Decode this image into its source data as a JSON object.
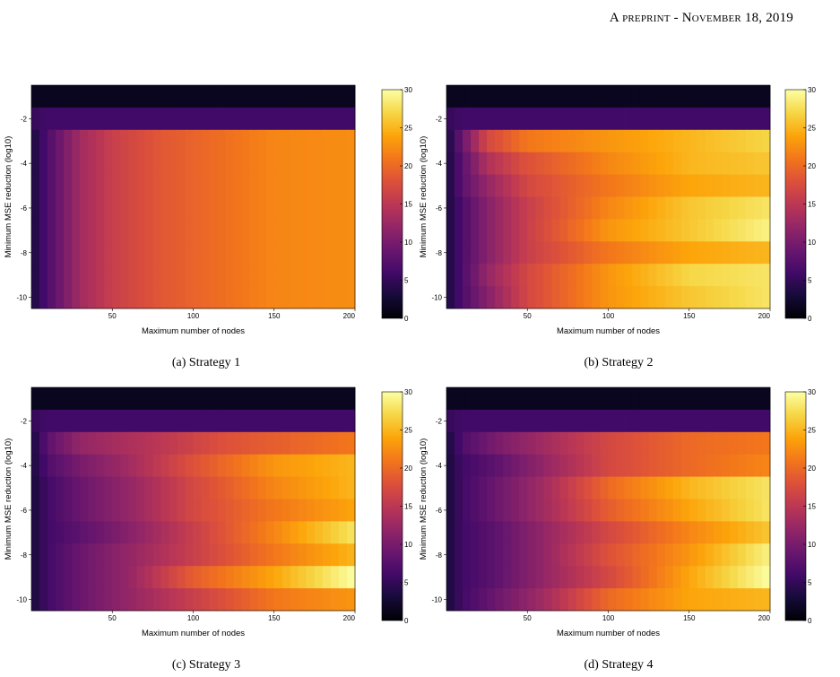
{
  "header": {
    "running_head": "A preprint - November 18, 2019"
  },
  "chart_data": [
    {
      "type": "heatmap",
      "caption": "(a) Strategy 1",
      "xlabel": "Maximum number of nodes",
      "ylabel": "Minimum MSE reduction (log10)",
      "xticks": [
        50,
        100,
        150,
        200
      ],
      "yticks": [
        -2,
        -4,
        -6,
        -8,
        -10
      ],
      "colorbar_ticks": [
        0,
        5,
        10,
        15,
        20,
        25,
        30
      ],
      "colorbar_range": [
        0,
        30
      ],
      "colormap": "inferno",
      "x": [
        1,
        200
      ],
      "y_rows": [
        -1,
        -2,
        -3,
        -4,
        -5,
        -6,
        -7,
        -8,
        -9,
        -10
      ],
      "profiles": [
        {
          "rows": [
            -1
          ],
          "points": [
            [
              0,
              1.5
            ],
            [
              200,
              1.5
            ]
          ]
        },
        {
          "rows": [
            -2
          ],
          "points": [
            [
              0,
              5
            ],
            [
              10,
              6
            ],
            [
              200,
              6
            ]
          ]
        },
        {
          "rows": [
            -3,
            -4,
            -5,
            -6,
            -7,
            -8,
            -9,
            -10
          ],
          "points": [
            [
              0,
              3
            ],
            [
              10,
              7
            ],
            [
              20,
              10
            ],
            [
              30,
              13
            ],
            [
              50,
              16
            ],
            [
              80,
              18.5
            ],
            [
              100,
              19.5
            ],
            [
              130,
              21
            ],
            [
              150,
              22
            ],
            [
              200,
              22.5
            ]
          ]
        }
      ]
    },
    {
      "type": "heatmap",
      "caption": "(b) Strategy 2",
      "xlabel": "Maximum number of nodes",
      "ylabel": "Minimum MSE reduction (log10)",
      "xticks": [
        50,
        100,
        150,
        200
      ],
      "yticks": [
        -2,
        -4,
        -6,
        -8,
        -10
      ],
      "colorbar_ticks": [
        0,
        5,
        10,
        15,
        20,
        25,
        30
      ],
      "colorbar_range": [
        0,
        30
      ],
      "colormap": "inferno",
      "x": [
        1,
        200
      ],
      "y_rows": [
        -1,
        -2,
        -3,
        -4,
        -5,
        -6,
        -7,
        -8,
        -9,
        -10
      ],
      "profiles": [
        {
          "rows": [
            -1
          ],
          "points": [
            [
              0,
              1.5
            ],
            [
              200,
              1.5
            ]
          ]
        },
        {
          "rows": [
            -2
          ],
          "points": [
            [
              0,
              5
            ],
            [
              10,
              6
            ],
            [
              200,
              6
            ]
          ]
        },
        {
          "rows": [
            -3
          ],
          "points": [
            [
              0,
              3
            ],
            [
              10,
              9
            ],
            [
              25,
              17
            ],
            [
              50,
              21
            ],
            [
              100,
              23
            ],
            [
              150,
              25
            ],
            [
              200,
              27
            ]
          ]
        },
        {
          "rows": [
            -4
          ],
          "points": [
            [
              0,
              3
            ],
            [
              10,
              8
            ],
            [
              25,
              14
            ],
            [
              50,
              18
            ],
            [
              100,
              22
            ],
            [
              150,
              25
            ],
            [
              200,
              26
            ]
          ]
        },
        {
          "rows": [
            -5
          ],
          "points": [
            [
              0,
              3
            ],
            [
              10,
              8
            ],
            [
              25,
              12
            ],
            [
              50,
              17
            ],
            [
              100,
              21
            ],
            [
              150,
              24
            ],
            [
              200,
              25
            ]
          ]
        },
        {
          "rows": [
            -6
          ],
          "points": [
            [
              0,
              3
            ],
            [
              10,
              7
            ],
            [
              25,
              11
            ],
            [
              50,
              16
            ],
            [
              100,
              22
            ],
            [
              150,
              26
            ],
            [
              200,
              28
            ]
          ]
        },
        {
          "rows": [
            -7
          ],
          "points": [
            [
              0,
              3
            ],
            [
              10,
              7
            ],
            [
              25,
              11
            ],
            [
              50,
              16
            ],
            [
              100,
              23
            ],
            [
              150,
              26
            ],
            [
              200,
              29
            ]
          ]
        },
        {
          "rows": [
            -8
          ],
          "points": [
            [
              0,
              3
            ],
            [
              10,
              7
            ],
            [
              25,
              11
            ],
            [
              50,
              16
            ],
            [
              100,
              21
            ],
            [
              150,
              24
            ],
            [
              200,
              25
            ]
          ]
        },
        {
          "rows": [
            -9
          ],
          "points": [
            [
              0,
              3
            ],
            [
              10,
              7
            ],
            [
              25,
              12
            ],
            [
              50,
              17
            ],
            [
              100,
              23
            ],
            [
              150,
              27
            ],
            [
              200,
              28
            ]
          ]
        },
        {
          "rows": [
            -10
          ],
          "points": [
            [
              0,
              3
            ],
            [
              10,
              7
            ],
            [
              25,
              11
            ],
            [
              50,
              17
            ],
            [
              100,
              23
            ],
            [
              150,
              26
            ],
            [
              200,
              28
            ]
          ]
        }
      ]
    },
    {
      "type": "heatmap",
      "caption": "(c) Strategy 3",
      "xlabel": "Maximum number of nodes",
      "ylabel": "Minimum MSE reduction (log10)",
      "xticks": [
        50,
        100,
        150,
        200
      ],
      "yticks": [
        -2,
        -4,
        -6,
        -8,
        -10
      ],
      "colorbar_ticks": [
        0,
        5,
        10,
        15,
        20,
        25,
        30
      ],
      "colorbar_range": [
        0,
        30
      ],
      "colormap": "inferno",
      "x": [
        1,
        200
      ],
      "y_rows": [
        -1,
        -2,
        -3,
        -4,
        -5,
        -6,
        -7,
        -8,
        -9,
        -10
      ],
      "profiles": [
        {
          "rows": [
            -1
          ],
          "points": [
            [
              0,
              1.5
            ],
            [
              200,
              1.5
            ]
          ]
        },
        {
          "rows": [
            -2
          ],
          "points": [
            [
              0,
              5
            ],
            [
              10,
              6
            ],
            [
              200,
              6
            ]
          ]
        },
        {
          "rows": [
            -3
          ],
          "points": [
            [
              0,
              3
            ],
            [
              10,
              8
            ],
            [
              30,
              12
            ],
            [
              80,
              15
            ],
            [
              120,
              18
            ],
            [
              200,
              21
            ]
          ]
        },
        {
          "rows": [
            -4
          ],
          "points": [
            [
              0,
              3
            ],
            [
              10,
              7
            ],
            [
              30,
              10
            ],
            [
              60,
              13
            ],
            [
              100,
              18
            ],
            [
              150,
              23
            ],
            [
              200,
              25
            ]
          ]
        },
        {
          "rows": [
            -5
          ],
          "points": [
            [
              0,
              3
            ],
            [
              10,
              6
            ],
            [
              30,
              9
            ],
            [
              60,
              12
            ],
            [
              100,
              17
            ],
            [
              150,
              22
            ],
            [
              200,
              25
            ]
          ]
        },
        {
          "rows": [
            -6
          ],
          "points": [
            [
              0,
              3
            ],
            [
              10,
              6
            ],
            [
              30,
              9
            ],
            [
              60,
              12
            ],
            [
              100,
              17
            ],
            [
              150,
              21
            ],
            [
              200,
              24
            ]
          ]
        },
        {
          "rows": [
            -7
          ],
          "points": [
            [
              0,
              3
            ],
            [
              10,
              6
            ],
            [
              30,
              8
            ],
            [
              60,
              11
            ],
            [
              100,
              16
            ],
            [
              150,
              22
            ],
            [
              200,
              28
            ]
          ]
        },
        {
          "rows": [
            -8
          ],
          "points": [
            [
              0,
              3
            ],
            [
              10,
              6
            ],
            [
              30,
              9
            ],
            [
              60,
              12
            ],
            [
              100,
              16
            ],
            [
              150,
              21
            ],
            [
              200,
              25
            ]
          ]
        },
        {
          "rows": [
            -9
          ],
          "points": [
            [
              0,
              3
            ],
            [
              10,
              6
            ],
            [
              30,
              9
            ],
            [
              60,
              12
            ],
            [
              100,
              19
            ],
            [
              150,
              24
            ],
            [
              200,
              30
            ]
          ]
        },
        {
          "rows": [
            -10
          ],
          "points": [
            [
              0,
              3
            ],
            [
              10,
              6
            ],
            [
              30,
              9
            ],
            [
              60,
              12
            ],
            [
              100,
              16
            ],
            [
              150,
              21
            ],
            [
              200,
              23
            ]
          ]
        }
      ]
    },
    {
      "type": "heatmap",
      "caption": "(d) Strategy 4",
      "xlabel": "Maximum number of nodes",
      "ylabel": "Minimum MSE reduction (log10)",
      "xticks": [
        50,
        100,
        150,
        200
      ],
      "yticks": [
        -2,
        -4,
        -6,
        -8,
        -10
      ],
      "colorbar_ticks": [
        0,
        5,
        10,
        15,
        20,
        25,
        30
      ],
      "colorbar_range": [
        0,
        30
      ],
      "colormap": "inferno",
      "x": [
        1,
        200
      ],
      "y_rows": [
        -1,
        -2,
        -3,
        -4,
        -5,
        -6,
        -7,
        -8,
        -9,
        -10
      ],
      "profiles": [
        {
          "rows": [
            -1
          ],
          "points": [
            [
              0,
              1.5
            ],
            [
              200,
              1.5
            ]
          ]
        },
        {
          "rows": [
            -2
          ],
          "points": [
            [
              0,
              5
            ],
            [
              10,
              6
            ],
            [
              200,
              6
            ]
          ]
        },
        {
          "rows": [
            -3
          ],
          "points": [
            [
              0,
              3
            ],
            [
              10,
              7
            ],
            [
              30,
              10
            ],
            [
              60,
              13
            ],
            [
              100,
              17
            ],
            [
              150,
              20
            ],
            [
              200,
              21
            ]
          ]
        },
        {
          "rows": [
            -4
          ],
          "points": [
            [
              0,
              3
            ],
            [
              10,
              6
            ],
            [
              30,
              8
            ],
            [
              60,
              12
            ],
            [
              100,
              17
            ],
            [
              150,
              20
            ],
            [
              200,
              22
            ]
          ]
        },
        {
          "rows": [
            -5
          ],
          "points": [
            [
              0,
              3
            ],
            [
              10,
              6
            ],
            [
              30,
              9
            ],
            [
              60,
              13
            ],
            [
              100,
              20
            ],
            [
              150,
              25
            ],
            [
              200,
              28
            ]
          ]
        },
        {
          "rows": [
            -6
          ],
          "points": [
            [
              0,
              3
            ],
            [
              10,
              6
            ],
            [
              30,
              9
            ],
            [
              60,
              13
            ],
            [
              100,
              19
            ],
            [
              150,
              24
            ],
            [
              200,
              28
            ]
          ]
        },
        {
          "rows": [
            -7
          ],
          "points": [
            [
              0,
              3
            ],
            [
              10,
              6
            ],
            [
              30,
              8
            ],
            [
              60,
              12
            ],
            [
              100,
              17
            ],
            [
              150,
              22
            ],
            [
              200,
              26
            ]
          ]
        },
        {
          "rows": [
            -8
          ],
          "points": [
            [
              0,
              3
            ],
            [
              10,
              6
            ],
            [
              30,
              8
            ],
            [
              60,
              12
            ],
            [
              100,
              18
            ],
            [
              150,
              23
            ],
            [
              200,
              29
            ]
          ]
        },
        {
          "rows": [
            -9
          ],
          "points": [
            [
              0,
              3
            ],
            [
              10,
              6
            ],
            [
              30,
              8
            ],
            [
              60,
              12
            ],
            [
              100,
              17
            ],
            [
              150,
              24
            ],
            [
              200,
              30
            ]
          ]
        },
        {
          "rows": [
            -10
          ],
          "points": [
            [
              0,
              3
            ],
            [
              10,
              6
            ],
            [
              30,
              9
            ],
            [
              60,
              13
            ],
            [
              100,
              20
            ],
            [
              150,
              24
            ],
            [
              200,
              25
            ]
          ]
        }
      ]
    }
  ]
}
